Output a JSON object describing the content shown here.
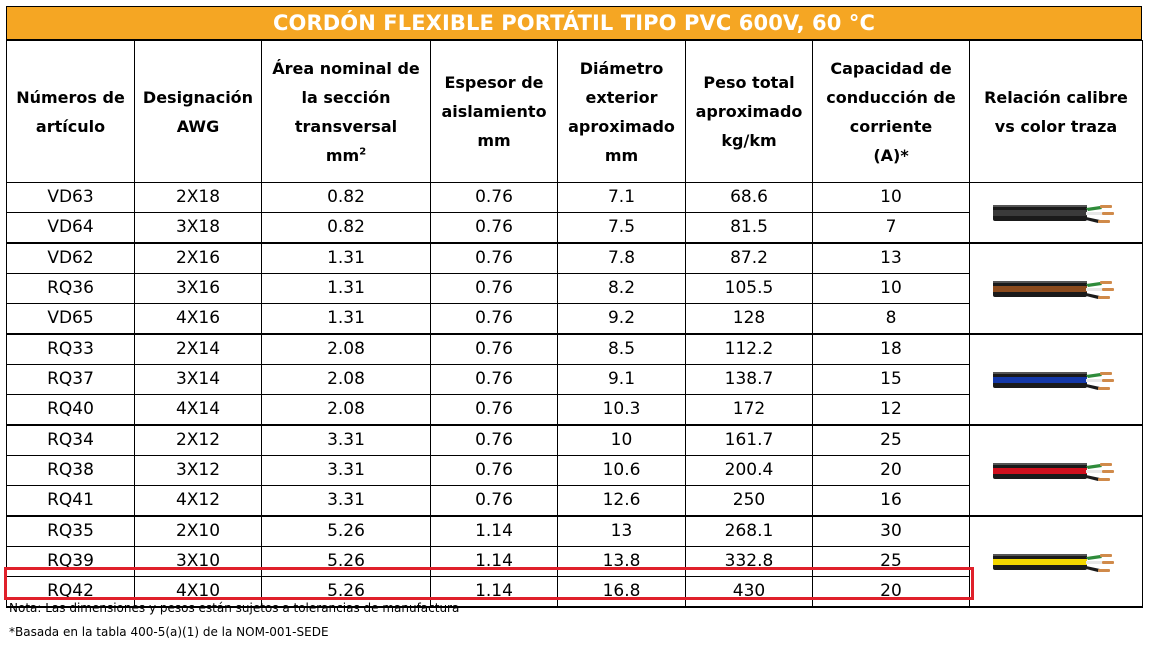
{
  "title": "CORDÓN FLEXIBLE PORTÁTIL TIPO PVC 600V, 60 °C",
  "headers": {
    "articulo": [
      "Números de",
      "artículo"
    ],
    "awg": [
      "Designación",
      "AWG"
    ],
    "area": [
      "Área nominal de",
      "la sección",
      "transversal",
      "mm"
    ],
    "area_sup": "2",
    "espesor": [
      "Espesor de",
      "aislamiento",
      "mm"
    ],
    "diametro": [
      "Diámetro",
      "exterior",
      "aproximado",
      "mm"
    ],
    "peso": [
      "Peso total",
      "aproximado",
      "kg/km"
    ],
    "capacidad": [
      "Capacidad de",
      "conducción de",
      "corriente",
      "(A)*"
    ],
    "relacion": [
      "Relación calibre",
      "vs color traza"
    ]
  },
  "groups": [
    {
      "trace_color": "#3a3a3a",
      "trace_name": "black-trace",
      "rows": [
        [
          "VD63",
          "2X18",
          "0.82",
          "0.76",
          "7.1",
          "68.6",
          "10"
        ],
        [
          "VD64",
          "3X18",
          "0.82",
          "0.76",
          "7.5",
          "81.5",
          "7"
        ]
      ]
    },
    {
      "trace_color": "#8b4a1c",
      "trace_name": "brown-trace",
      "rows": [
        [
          "VD62",
          "2X16",
          "1.31",
          "0.76",
          "7.8",
          "87.2",
          "13"
        ],
        [
          "RQ36",
          "3X16",
          "1.31",
          "0.76",
          "8.2",
          "105.5",
          "10"
        ],
        [
          "VD65",
          "4X16",
          "1.31",
          "0.76",
          "9.2",
          "128",
          "8"
        ]
      ]
    },
    {
      "trace_color": "#1438a8",
      "trace_name": "blue-trace",
      "rows": [
        [
          "RQ33",
          "2X14",
          "2.08",
          "0.76",
          "8.5",
          "112.2",
          "18"
        ],
        [
          "RQ37",
          "3X14",
          "2.08",
          "0.76",
          "9.1",
          "138.7",
          "15"
        ],
        [
          "RQ40",
          "4X14",
          "2.08",
          "0.76",
          "10.3",
          "172",
          "12"
        ]
      ]
    },
    {
      "trace_color": "#d0101e",
      "trace_name": "red-trace",
      "rows": [
        [
          "RQ34",
          "2X12",
          "3.31",
          "0.76",
          "10",
          "161.7",
          "25"
        ],
        [
          "RQ38",
          "3X12",
          "3.31",
          "0.76",
          "10.6",
          "200.4",
          "20"
        ],
        [
          "RQ41",
          "4X12",
          "3.31",
          "0.76",
          "12.6",
          "250",
          "16"
        ]
      ]
    },
    {
      "trace_color": "#f2d600",
      "trace_name": "yellow-trace",
      "rows": [
        [
          "RQ35",
          "2X10",
          "5.26",
          "1.14",
          "13",
          "268.1",
          "30"
        ],
        [
          "RQ39",
          "3X10",
          "5.26",
          "1.14",
          "13.8",
          "332.8",
          "25"
        ],
        [
          "RQ42",
          "4X10",
          "5.26",
          "1.14",
          "16.8",
          "430",
          "20"
        ]
      ]
    }
  ],
  "highlighted_row": "RQ42",
  "highlight_color": "#e0202a",
  "title_bg": "#f5a623",
  "notes": [
    "Nota: Las dimensiones y pesos están sujetos a tolerancias de manufactura",
    "*Basada en la tabla 400-5(a)(1) de la NOM-001-SEDE"
  ]
}
